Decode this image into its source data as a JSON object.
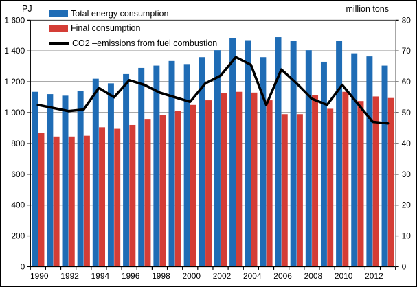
{
  "chart_data": {
    "type": "bar",
    "title": "",
    "categories": [
      1990,
      1991,
      1992,
      1993,
      1994,
      1995,
      1996,
      1997,
      1998,
      1999,
      2000,
      2001,
      2002,
      2003,
      2004,
      2005,
      2006,
      2007,
      2008,
      2009,
      2010,
      2011,
      2012,
      2013
    ],
    "series": [
      {
        "name": "Total energy consumption",
        "style": "bar",
        "axis": "left",
        "color": "#1f6cb5",
        "values": [
          1135,
          1120,
          1110,
          1140,
          1220,
          1190,
          1250,
          1290,
          1305,
          1335,
          1315,
          1360,
          1405,
          1485,
          1470,
          1360,
          1490,
          1465,
          1405,
          1330,
          1465,
          1385,
          1365,
          1305
        ]
      },
      {
        "name": "Final consumption",
        "style": "bar",
        "axis": "left",
        "color": "#d43d36",
        "values": [
          870,
          845,
          845,
          850,
          905,
          895,
          920,
          955,
          985,
          1010,
          1050,
          1080,
          1125,
          1135,
          1130,
          1080,
          990,
          990,
          1115,
          1025,
          1135,
          1075,
          1105,
          1095
        ]
      },
      {
        "name": "CO2 –emissions from fuel combustion",
        "style": "line",
        "axis": "right",
        "color": "#000000",
        "values": [
          52.5,
          51.5,
          50.5,
          51,
          58,
          55,
          60.5,
          59,
          56.5,
          55,
          53.5,
          59.5,
          62,
          68,
          65.5,
          52.5,
          64,
          59.5,
          54.5,
          52.5,
          59,
          53,
          47,
          46.5
        ]
      }
    ],
    "left_axis": {
      "label": "PJ",
      "min": 0,
      "max": 1600,
      "tick_step": 200,
      "tick_labels": [
        "0",
        "200",
        "400",
        "600",
        "800",
        "1 000",
        "1 200",
        "1 400",
        "1 600"
      ]
    },
    "right_axis": {
      "label": "million tons",
      "min": 0,
      "max": 80,
      "tick_step": 10,
      "tick_labels": [
        "0",
        "10",
        "20",
        "30",
        "40",
        "50",
        "60",
        "70",
        "80"
      ]
    },
    "x_axis": {
      "tick_every": 1,
      "label_every": 2,
      "labels": [
        "1990",
        "1992",
        "1994",
        "1996",
        "1998",
        "2000",
        "2002",
        "2004",
        "2006",
        "2008",
        "2010",
        "2012"
      ]
    },
    "grid": "horizontal",
    "legend_position": "top-left"
  }
}
